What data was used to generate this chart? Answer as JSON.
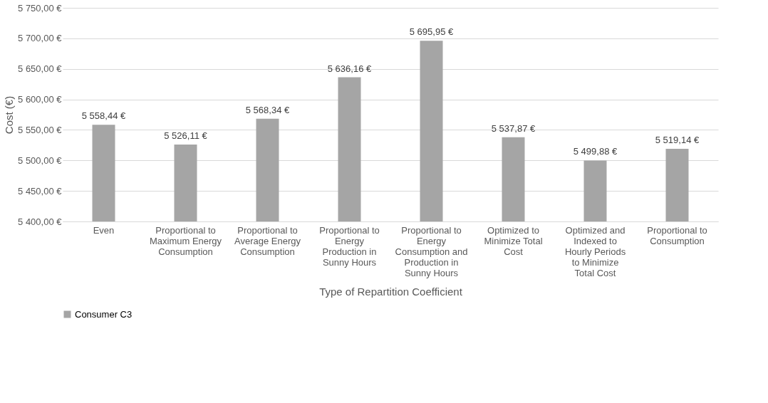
{
  "chart_data": {
    "type": "bar",
    "xlabel": "Type of Repartition Coefficient",
    "ylabel": "Cost (€)",
    "categories": [
      "Even",
      "Proportional to Maximum Energy Consumption",
      "Proportional to Average Energy Consumption",
      "Proportional to Energy Production in Sunny Hours",
      "Proportional to Energy Consumption and Production in Sunny Hours",
      "Optimized to Minimize Total Cost",
      "Optimized and Indexed to Hourly Periods to Minimize Total Cost",
      "Proportional to Consumption"
    ],
    "series": [
      {
        "name": "Consumer C3",
        "color": "#a5a5a5",
        "values": [
          5558.44,
          5526.11,
          5568.34,
          5636.16,
          5695.95,
          5537.87,
          5499.88,
          5519.14
        ],
        "value_labels": [
          "5 558,44 €",
          "5 526,11 €",
          "5 568,34 €",
          "5 636,16 €",
          "5 695,95 €",
          "5 537,87 €",
          "5 499,88 €",
          "5 519,14 €"
        ]
      }
    ],
    "ylim": [
      5400,
      5750
    ],
    "yticks": [
      {
        "value": 5400,
        "label": "5 400,00 €"
      },
      {
        "value": 5450,
        "label": "5 450,00 €"
      },
      {
        "value": 5500,
        "label": "5 500,00 €"
      },
      {
        "value": 5550,
        "label": "5 550,00 €"
      },
      {
        "value": 5600,
        "label": "5 600,00 €"
      },
      {
        "value": 5650,
        "label": "5 650,00 €"
      },
      {
        "value": 5700,
        "label": "5 700,00 €"
      },
      {
        "value": 5750,
        "label": "5 750,00 €"
      }
    ],
    "grid": "y",
    "legend": "bottom"
  }
}
